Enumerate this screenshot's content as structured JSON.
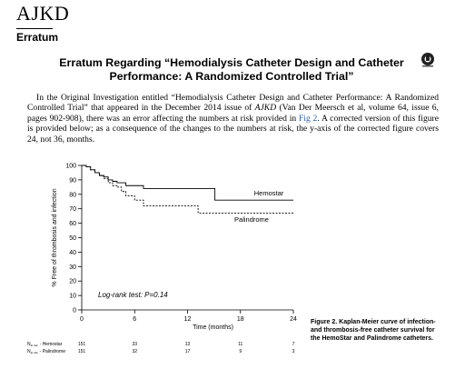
{
  "header": {
    "journal": "AJKD",
    "section": "Erratum"
  },
  "title": "Erratum Regarding “Hemodialysis Catheter Design and Catheter Performance: A Randomized Controlled Trial”",
  "paragraph": {
    "before": "In the Original Investigation entitled “Hemodialysis Catheter Design and Catheter Performance: A Randomized Controlled Trial” that appeared in the December 2014 issue of ",
    "journal": "AJKD",
    "middle": " (Van Der Meersch et al, volume 64, issue 6, pages 902-908), there was an error affecting the numbers at risk provided in ",
    "link": "Fig 2",
    "after": ". A corrected version of this figure is provided below; as a consequence of the changes to the numbers at risk, the y-axis of the corrected figure covers 24, not 36, months."
  },
  "chart_data": {
    "type": "step",
    "xlabel": "Time (months)",
    "ylabel": "% Free of thrombosis and infection",
    "annotation": "Log-rank test: P=0.14",
    "xlim": [
      0,
      24
    ],
    "xticks": [
      0,
      6,
      12,
      18,
      24
    ],
    "ylim": [
      0,
      100
    ],
    "yticks": [
      0,
      10,
      20,
      30,
      40,
      50,
      60,
      70,
      80,
      90,
      100
    ],
    "series": [
      {
        "name": "Hemostar",
        "color": "#000000",
        "dash": false,
        "x": [
          0,
          0.5,
          1,
          1.5,
          2,
          2.5,
          3,
          3.5,
          4,
          5,
          7,
          15.1,
          24
        ],
        "values": [
          100,
          99,
          97,
          95,
          93,
          92,
          90,
          89,
          88,
          86,
          84,
          76,
          76
        ]
      },
      {
        "name": "Palindrome",
        "color": "#000000",
        "dash": true,
        "x": [
          0,
          0.5,
          1,
          1.5,
          2,
          2.5,
          3,
          3.5,
          4,
          4.5,
          5,
          6,
          7,
          13.2,
          24
        ],
        "values": [
          100,
          99,
          97,
          95,
          93,
          91,
          88,
          86,
          85,
          82,
          79,
          76,
          72,
          67,
          67
        ]
      }
    ]
  },
  "risk_table": {
    "prefix": "N",
    "sub": "at risk",
    "rows": [
      {
        "name": "- Hemostar",
        "values": [
          151,
          33,
          13,
          11,
          7
        ]
      },
      {
        "name": "- Palindrome",
        "values": [
          151,
          32,
          17,
          9,
          3
        ]
      }
    ]
  },
  "caption": {
    "label": "Figure 2.",
    "text": "Kaplan-Meier curve of infection- and thrombosis-free catheter survival for the HemoStar and Palindrome catheters."
  }
}
